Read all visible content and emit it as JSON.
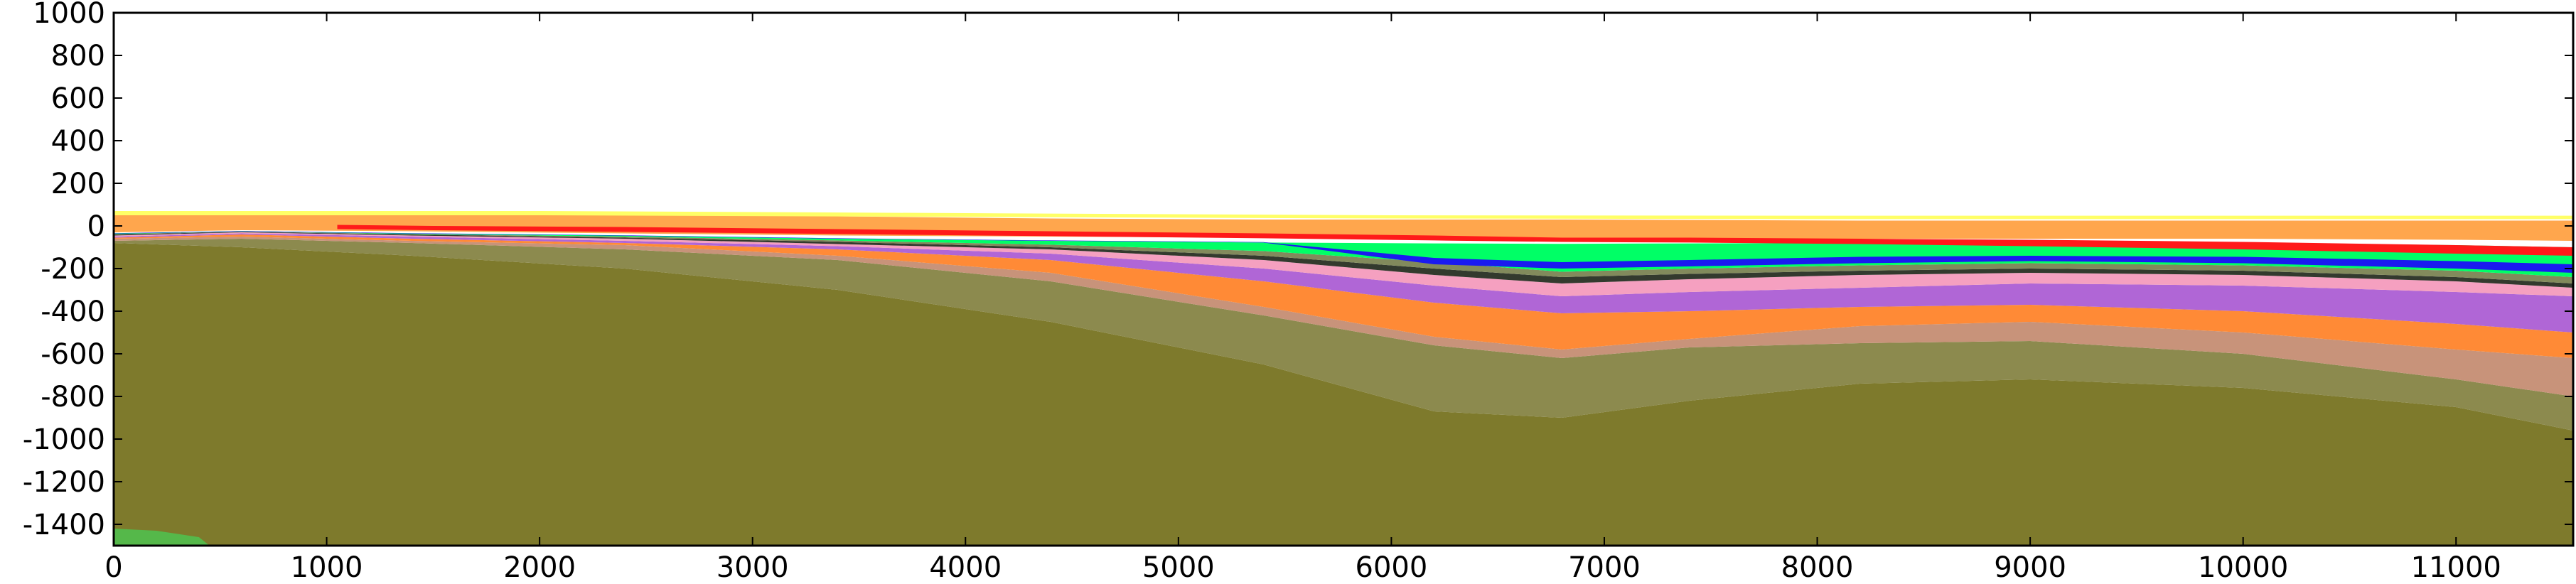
{
  "chart_data": {
    "type": "area",
    "title": "",
    "xlabel": "",
    "ylabel": "",
    "xlim": [
      0,
      11550
    ],
    "ylim": [
      -1500,
      1000
    ],
    "grid": false,
    "x_ticks": [
      0,
      1000,
      2000,
      3000,
      4000,
      5000,
      6000,
      7000,
      8000,
      9000,
      10000,
      11000
    ],
    "y_ticks": [
      1000,
      800,
      600,
      400,
      200,
      0,
      -200,
      -400,
      -600,
      -800,
      -1000,
      -1200,
      -1400
    ],
    "layers": [
      {
        "color": "#7e7a2c",
        "top": [
          [
            0,
            -80
          ],
          [
            600,
            -100
          ],
          [
            1400,
            -140
          ],
          [
            2400,
            -200
          ],
          [
            3400,
            -300
          ],
          [
            4400,
            -450
          ],
          [
            5400,
            -650
          ],
          [
            6200,
            -870
          ],
          [
            6800,
            -900
          ],
          [
            7400,
            -820
          ],
          [
            8200,
            -740
          ],
          [
            9000,
            -720
          ],
          [
            10000,
            -760
          ],
          [
            11000,
            -850
          ],
          [
            11550,
            -960
          ]
        ],
        "bottom": "base"
      },
      {
        "color": "#8c8a4e",
        "top": [
          [
            0,
            -70
          ],
          [
            600,
            -60
          ],
          [
            1400,
            -80
          ],
          [
            2400,
            -110
          ],
          [
            3400,
            -160
          ],
          [
            4400,
            -260
          ],
          [
            5400,
            -420
          ],
          [
            6200,
            -560
          ],
          [
            6800,
            -620
          ],
          [
            7400,
            -570
          ],
          [
            8200,
            -550
          ],
          [
            9000,
            -540
          ],
          [
            10000,
            -600
          ],
          [
            11000,
            -720
          ],
          [
            11550,
            -800
          ]
        ],
        "bottom": "prev"
      },
      {
        "color": "#c8937a",
        "top": [
          [
            0,
            -60
          ],
          [
            600,
            -50
          ],
          [
            1400,
            -70
          ],
          [
            2400,
            -90
          ],
          [
            3400,
            -140
          ],
          [
            4400,
            -220
          ],
          [
            5400,
            -380
          ],
          [
            6200,
            -520
          ],
          [
            6800,
            -580
          ],
          [
            7400,
            -530
          ],
          [
            8200,
            -470
          ],
          [
            9000,
            -450
          ],
          [
            10000,
            -500
          ],
          [
            11000,
            -580
          ],
          [
            11550,
            -620
          ]
        ],
        "bottom": "prev"
      },
      {
        "color": "#ff8a36",
        "top": [
          [
            0,
            -55
          ],
          [
            600,
            -40
          ],
          [
            1400,
            -60
          ],
          [
            2400,
            -80
          ],
          [
            3400,
            -110
          ],
          [
            4400,
            -160
          ],
          [
            5400,
            -260
          ],
          [
            6200,
            -360
          ],
          [
            6800,
            -410
          ],
          [
            7400,
            -400
          ],
          [
            8200,
            -380
          ],
          [
            9000,
            -370
          ],
          [
            10000,
            -400
          ],
          [
            11000,
            -460
          ],
          [
            11550,
            -500
          ]
        ],
        "bottom": "prev"
      },
      {
        "color": "#b066d6",
        "top": [
          [
            0,
            -50
          ],
          [
            600,
            -35
          ],
          [
            1400,
            -50
          ],
          [
            2400,
            -70
          ],
          [
            3400,
            -95
          ],
          [
            4400,
            -130
          ],
          [
            5400,
            -200
          ],
          [
            6200,
            -280
          ],
          [
            6800,
            -330
          ],
          [
            7400,
            -310
          ],
          [
            8200,
            -290
          ],
          [
            9000,
            -270
          ],
          [
            10000,
            -280
          ],
          [
            11000,
            -310
          ],
          [
            11550,
            -330
          ]
        ],
        "bottom": "prev"
      },
      {
        "color": "#f5a0c0",
        "top": [
          [
            0,
            -45
          ],
          [
            600,
            -30
          ],
          [
            1400,
            -45
          ],
          [
            2400,
            -60
          ],
          [
            3400,
            -85
          ],
          [
            4400,
            -110
          ],
          [
            5400,
            -160
          ],
          [
            6200,
            -230
          ],
          [
            6800,
            -270
          ],
          [
            7400,
            -250
          ],
          [
            8200,
            -230
          ],
          [
            9000,
            -220
          ],
          [
            10000,
            -230
          ],
          [
            11000,
            -260
          ],
          [
            11550,
            -290
          ]
        ],
        "bottom": "prev"
      },
      {
        "color": "#333a2e",
        "top": [
          [
            0,
            -40
          ],
          [
            600,
            -28
          ],
          [
            1400,
            -40
          ],
          [
            2400,
            -55
          ],
          [
            3400,
            -75
          ],
          [
            4400,
            -100
          ],
          [
            5400,
            -140
          ],
          [
            6200,
            -200
          ],
          [
            6800,
            -240
          ],
          [
            7400,
            -225
          ],
          [
            8200,
            -210
          ],
          [
            9000,
            -200
          ],
          [
            10000,
            -210
          ],
          [
            11000,
            -240
          ],
          [
            11550,
            -270
          ]
        ],
        "bottom": "prev"
      },
      {
        "color": "#828a5c",
        "top": [
          [
            0,
            -38
          ],
          [
            600,
            -26
          ],
          [
            1400,
            -38
          ],
          [
            2400,
            -50
          ],
          [
            3400,
            -68
          ],
          [
            4400,
            -88
          ],
          [
            5400,
            -118
          ],
          [
            6200,
            -170
          ],
          [
            6800,
            -215
          ],
          [
            7400,
            -200
          ],
          [
            8200,
            -185
          ],
          [
            9000,
            -175
          ],
          [
            10000,
            -185
          ],
          [
            11000,
            -210
          ],
          [
            11550,
            -240
          ]
        ],
        "bottom": "prev"
      },
      {
        "color": "#00ff66",
        "top": [
          [
            0,
            -35
          ],
          [
            600,
            -24
          ],
          [
            1400,
            -35
          ],
          [
            2400,
            -45
          ],
          [
            3400,
            -60
          ],
          [
            4400,
            -70
          ],
          [
            5400,
            -78
          ],
          [
            6200,
            -82
          ],
          [
            6800,
            -84
          ],
          [
            7400,
            -82
          ],
          [
            8200,
            -80
          ],
          [
            9000,
            -78
          ],
          [
            10000,
            -80
          ],
          [
            11000,
            -90
          ],
          [
            11550,
            -100
          ]
        ],
        "bottom": "prev"
      },
      {
        "color": "#1a1af0",
        "top": [
          [
            0,
            -34
          ],
          [
            600,
            -24
          ],
          [
            1400,
            -34
          ],
          [
            2400,
            -44
          ],
          [
            3400,
            -58
          ],
          [
            4400,
            -68
          ],
          [
            5400,
            -76
          ],
          [
            6200,
            -150
          ],
          [
            6800,
            -170
          ],
          [
            7400,
            -160
          ],
          [
            8200,
            -145
          ],
          [
            9000,
            -140
          ],
          [
            10000,
            -145
          ],
          [
            11000,
            -165
          ],
          [
            11550,
            -180
          ]
        ],
        "bottom": [
          [
            0,
            -36
          ],
          [
            600,
            -26
          ],
          [
            1400,
            -36
          ],
          [
            2400,
            -46
          ],
          [
            3400,
            -60
          ],
          [
            4400,
            -70
          ],
          [
            5400,
            -78
          ],
          [
            6200,
            -180
          ],
          [
            6800,
            -200
          ],
          [
            7400,
            -190
          ],
          [
            8200,
            -175
          ],
          [
            9000,
            -165
          ],
          [
            10000,
            -175
          ],
          [
            11000,
            -200
          ],
          [
            11550,
            -220
          ]
        ]
      },
      {
        "color": "#ffa64d",
        "top": [
          [
            0,
            60
          ],
          [
            600,
            55
          ],
          [
            1400,
            60
          ],
          [
            2400,
            55
          ],
          [
            3400,
            45
          ],
          [
            4400,
            35
          ],
          [
            5400,
            30
          ],
          [
            6200,
            30
          ],
          [
            6800,
            30
          ],
          [
            7400,
            28
          ],
          [
            8200,
            25
          ],
          [
            9000,
            25
          ],
          [
            10000,
            25
          ],
          [
            11000,
            25
          ],
          [
            11550,
            25
          ]
        ],
        "bottom": [
          [
            0,
            -30
          ],
          [
            600,
            -20
          ],
          [
            1400,
            -25
          ],
          [
            2400,
            -35
          ],
          [
            3400,
            -45
          ],
          [
            4400,
            -50
          ],
          [
            5400,
            -55
          ],
          [
            6200,
            -60
          ],
          [
            6800,
            -60
          ],
          [
            7400,
            -60
          ],
          [
            8200,
            -60
          ],
          [
            9000,
            -60
          ],
          [
            10000,
            -60
          ],
          [
            11000,
            -65
          ],
          [
            11550,
            -70
          ]
        ]
      },
      {
        "color": "#ff1a1a",
        "top": [
          [
            1050,
            5
          ],
          [
            1500,
            0
          ],
          [
            2400,
            -5
          ],
          [
            3400,
            -15
          ],
          [
            4400,
            -25
          ],
          [
            5400,
            -35
          ],
          [
            6200,
            -45
          ],
          [
            6800,
            -55
          ],
          [
            7400,
            -55
          ],
          [
            8200,
            -60
          ],
          [
            9000,
            -65
          ],
          [
            10000,
            -75
          ],
          [
            11000,
            -90
          ],
          [
            11550,
            -100
          ]
        ],
        "bottom": [
          [
            1050,
            -15
          ],
          [
            1500,
            -20
          ],
          [
            2400,
            -28
          ],
          [
            3400,
            -38
          ],
          [
            4400,
            -48
          ],
          [
            5400,
            -58
          ],
          [
            6200,
            -68
          ],
          [
            6800,
            -75
          ],
          [
            7400,
            -78
          ],
          [
            8200,
            -85
          ],
          [
            9000,
            -95
          ],
          [
            10000,
            -110
          ],
          [
            11000,
            -130
          ],
          [
            11550,
            -140
          ]
        ]
      },
      {
        "color": "#ffff66",
        "top": [
          [
            0,
            70
          ],
          [
            2000,
            70
          ],
          [
            4000,
            60
          ],
          [
            6000,
            50
          ],
          [
            8000,
            48
          ],
          [
            10000,
            48
          ],
          [
            11550,
            48
          ]
        ],
        "bottom": [
          [
            0,
            50
          ],
          [
            2000,
            50
          ],
          [
            4000,
            42
          ],
          [
            6000,
            35
          ],
          [
            8000,
            32
          ],
          [
            10000,
            32
          ],
          [
            11550,
            32
          ]
        ]
      },
      {
        "color": "#55b84a",
        "top": [
          [
            0,
            -1420
          ],
          [
            200,
            -1430
          ],
          [
            400,
            -1460
          ],
          [
            450,
            -1500
          ]
        ],
        "bottom": "base"
      }
    ]
  }
}
